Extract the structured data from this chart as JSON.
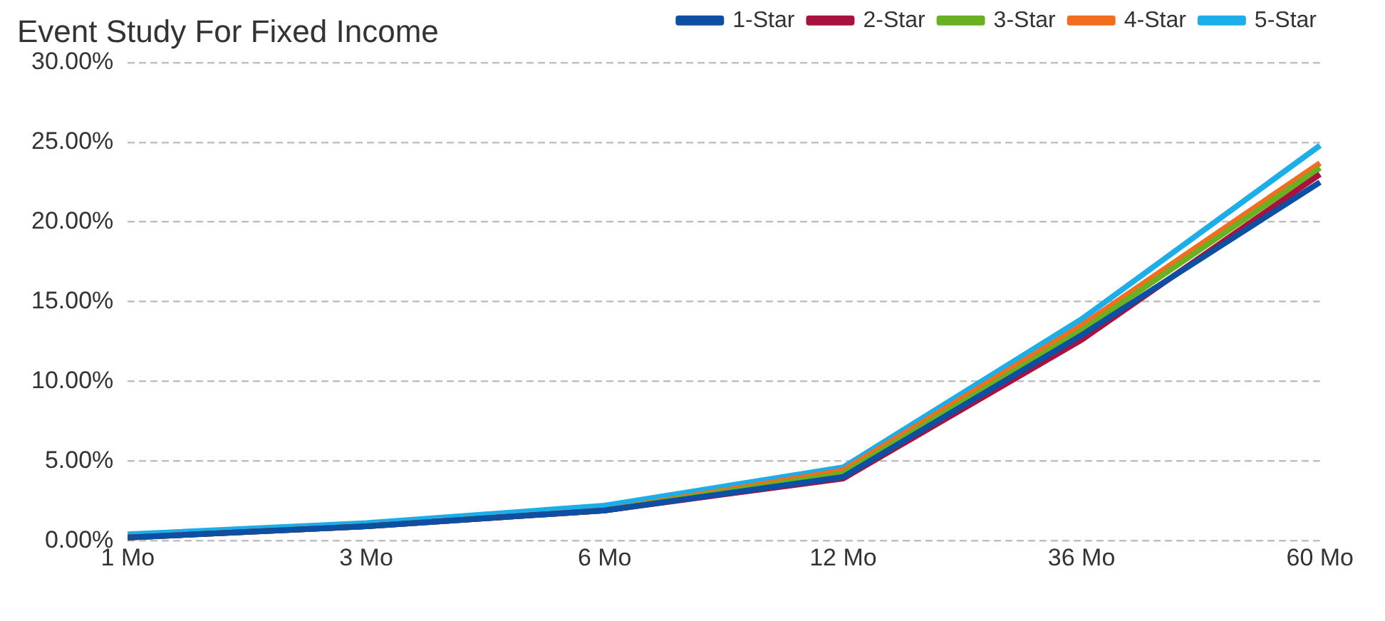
{
  "chart_data": {
    "type": "line",
    "title": "Event Study For Fixed Income",
    "categories": [
      "1 Mo",
      "3 Mo",
      "6 Mo",
      "12 Mo",
      "36 Mo",
      "60 Mo"
    ],
    "series": [
      {
        "name": "1-Star",
        "color": "#0d4fa3",
        "values": [
          0.2,
          0.9,
          1.9,
          4.0,
          12.9,
          22.5
        ]
      },
      {
        "name": "2-Star",
        "color": "#a8123e",
        "values": [
          0.2,
          0.9,
          1.9,
          3.9,
          12.6,
          23.0
        ]
      },
      {
        "name": "3-Star",
        "color": "#6ab023",
        "values": [
          0.2,
          0.9,
          1.9,
          4.2,
          13.2,
          23.4
        ]
      },
      {
        "name": "4-Star",
        "color": "#f26d1d",
        "values": [
          0.2,
          0.9,
          1.9,
          4.4,
          13.5,
          23.7
        ]
      },
      {
        "name": "5-Star",
        "color": "#1caee8",
        "values": [
          0.4,
          1.1,
          2.2,
          4.6,
          13.9,
          24.8
        ]
      }
    ],
    "ylim": [
      0,
      30
    ],
    "yticks": [
      {
        "value": 0,
        "label": "0.00%"
      },
      {
        "value": 5,
        "label": "5.00%"
      },
      {
        "value": 10,
        "label": "10.00%"
      },
      {
        "value": 15,
        "label": "15.00%"
      },
      {
        "value": 20,
        "label": "20.00%"
      },
      {
        "value": 25,
        "label": "25.00%"
      },
      {
        "value": 30,
        "label": "30.00%"
      }
    ],
    "grid": "y",
    "legend": "top right",
    "marker": "none",
    "line_style": "solid"
  }
}
